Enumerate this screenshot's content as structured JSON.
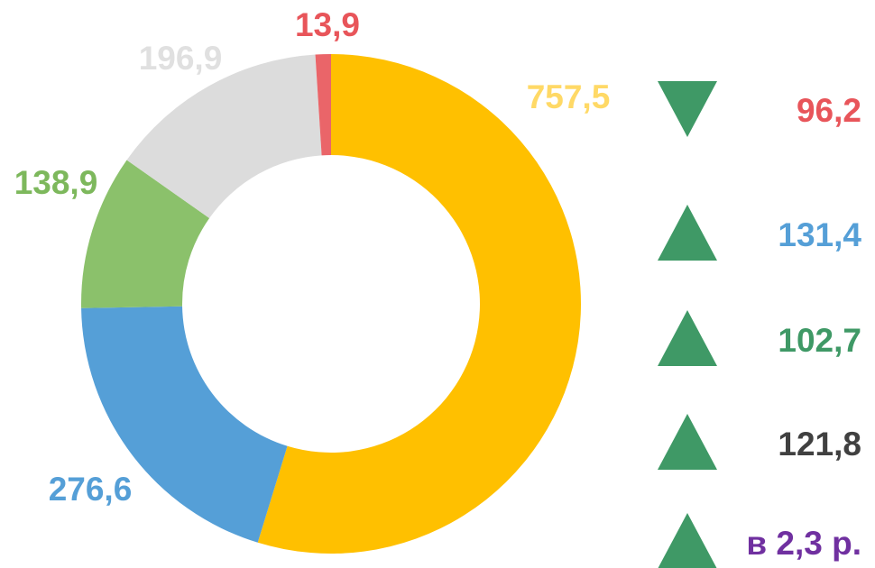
{
  "chart_data": {
    "type": "donut",
    "categories": [
      null,
      null,
      null,
      null,
      null
    ],
    "values": [
      757.5,
      276.6,
      138.9,
      196.9,
      13.9
    ],
    "value_labels": [
      "757,5",
      "276,6",
      "138,9",
      "196,9",
      "13,9"
    ],
    "colors": [
      "#FFC000",
      "#559FD7",
      "#8BC16B",
      "#DCDCDC",
      "#EA6569"
    ],
    "label_colors": [
      "#FFD966",
      "#559FD7",
      "#7DB85C",
      "#E0E0E0",
      "#E8555A"
    ]
  },
  "indicators": [
    {
      "direction": "down",
      "label": "96,2",
      "color": "#E8555A"
    },
    {
      "direction": "up",
      "label": "131,4",
      "color": "#559FD7"
    },
    {
      "direction": "up",
      "label": "102,7",
      "color": "#3F9966"
    },
    {
      "direction": "up",
      "label": "121,8",
      "color": "#404040"
    },
    {
      "direction": "up",
      "label": "в 2,3 р.",
      "color": "#7030A0"
    }
  ],
  "indicator_color": "#3F9966"
}
